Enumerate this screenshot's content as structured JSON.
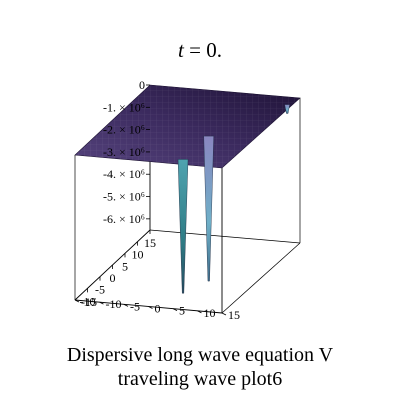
{
  "title": {
    "variable": "t",
    "rest": " = 0."
  },
  "caption": {
    "line1": "Dispersive long wave equation V",
    "line2": "traveling wave plot6"
  },
  "colors": {
    "surface_dark": "#2e1a47",
    "surface_mid": "#5a4a8a",
    "surface_light": "#5f9aa0",
    "axes": "#000000"
  },
  "chart_data": {
    "type": "surface3d",
    "title": "t = 0.",
    "zlabels": [
      "0",
      "-1. × 10⁶",
      "-2. × 10⁶",
      "-3. × 10⁶",
      "-4. × 10⁶",
      "-5. × 10⁶",
      "-6. × 10⁶"
    ],
    "zticks": [
      0,
      -1000000,
      -2000000,
      -3000000,
      -4000000,
      -5000000,
      -6000000
    ],
    "xticks": [
      15,
      10,
      5,
      0,
      -5,
      -10,
      -15
    ],
    "xlabels": [
      "15",
      "10",
      "5",
      "0",
      "-5",
      "-10"
    ],
    "yticks": [
      -15,
      -10,
      -5,
      0,
      5,
      10,
      15
    ],
    "ylabels": [
      "-15",
      "-10",
      "-5",
      "0",
      "5",
      "10",
      "15"
    ],
    "xlim": [
      -15,
      15
    ],
    "ylim": [
      -15,
      15
    ],
    "zlim": [
      -6500000,
      0
    ],
    "surface_level": 0,
    "spikes": [
      {
        "x": 12,
        "y": 14,
        "z_min": -400000
      },
      {
        "x": -3,
        "y": 6,
        "z_min": -6500000
      },
      {
        "x": -13,
        "y": 6,
        "z_min": -6000000
      }
    ],
    "grid": false,
    "legend": "none"
  }
}
